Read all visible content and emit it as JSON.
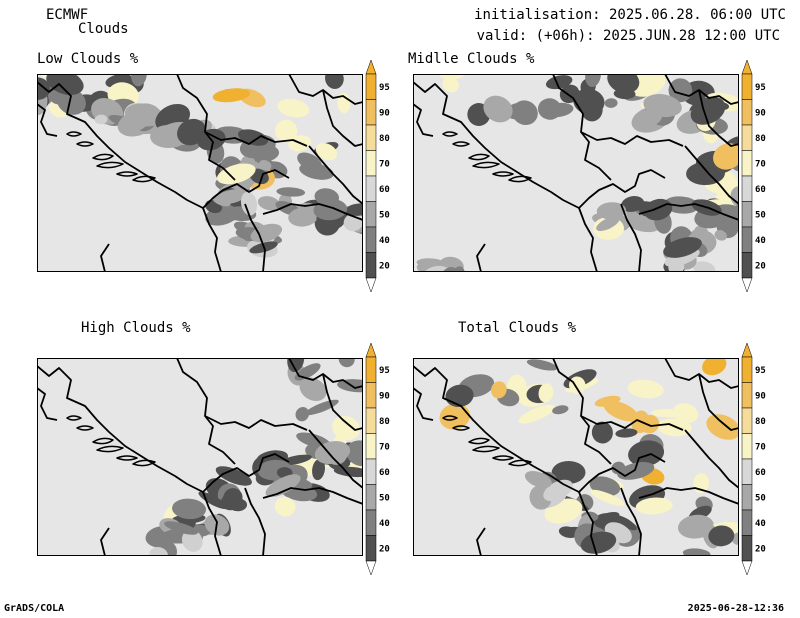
{
  "header": {
    "model": "ECMWF",
    "parameter": "Clouds",
    "initialisation": "initialisation: 2025.06.28. 06:00 UTC",
    "valid": "valid: (+06h): 2025.JUN.28 12:00 UTC"
  },
  "panels": [
    {
      "id": "low",
      "title": "Low Clouds %"
    },
    {
      "id": "mid",
      "title": "Midlle Clouds %"
    },
    {
      "id": "high",
      "title": "High Clouds %"
    },
    {
      "id": "total",
      "title": "Total Clouds %"
    }
  ],
  "colorbar": {
    "levels": [
      "95",
      "90",
      "80",
      "70",
      "60",
      "50",
      "40",
      "20"
    ],
    "colors": [
      "#f0b030",
      "#f0c060",
      "#f5dc9a",
      "#f8f4c8",
      "#d8d8d8",
      "#a8a8a8",
      "#808080",
      "#505050",
      "#ffffff"
    ]
  },
  "map": {
    "background": "#e6e6e6",
    "border_color": "#000000"
  },
  "footer": {
    "left": "GrADS/COLA",
    "right": "2025-06-28-12:36"
  }
}
